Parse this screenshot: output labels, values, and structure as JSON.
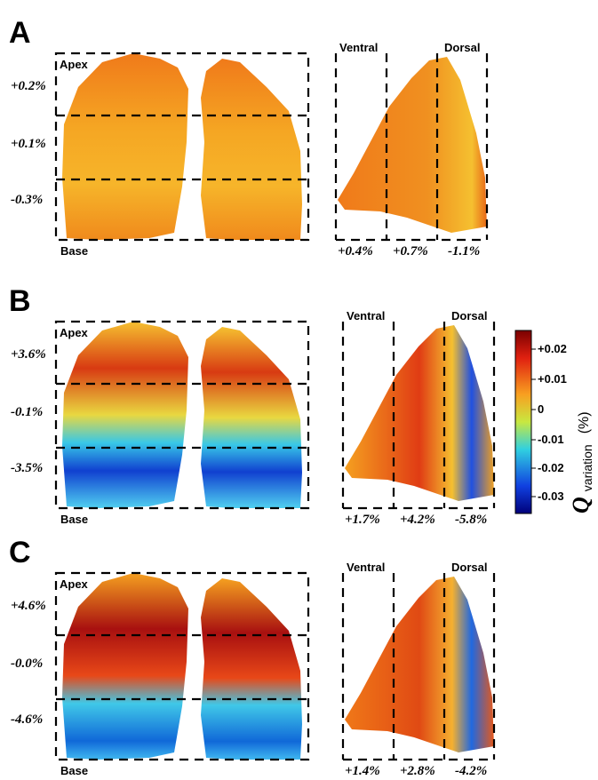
{
  "panels": [
    {
      "letter": "A",
      "apex": "Apex",
      "base": "Base",
      "coronal_labels": [
        "+0.2%",
        "+0.1%",
        "-0.3%"
      ],
      "ventral": "Ventral",
      "dorsal": "Dorsal",
      "sagittal_labels": [
        "+0.4%",
        "+0.7%",
        "-1.1%"
      ]
    },
    {
      "letter": "B",
      "apex": "Apex",
      "base": "Base",
      "coronal_labels": [
        "+3.6%",
        "-0.1%",
        "-3.5%"
      ],
      "ventral": "Ventral",
      "dorsal": "Dorsal",
      "sagittal_labels": [
        "+1.7%",
        "+4.2%",
        "-5.8%"
      ]
    },
    {
      "letter": "C",
      "apex": "Apex",
      "base": "Base",
      "coronal_labels": [
        "+4.6%",
        "-0.0%",
        "-4.6%"
      ],
      "ventral": "Ventral",
      "dorsal": "Dorsal",
      "sagittal_labels": [
        "+1.4%",
        "+2.8%",
        "-4.2%"
      ]
    }
  ],
  "colorbar": {
    "ticks": [
      "+0.02",
      "+0.01",
      "0",
      "-0.01",
      "-0.02",
      "-0.03"
    ],
    "symbol": "Q",
    "label": "variation",
    "unit": "(%)"
  }
}
